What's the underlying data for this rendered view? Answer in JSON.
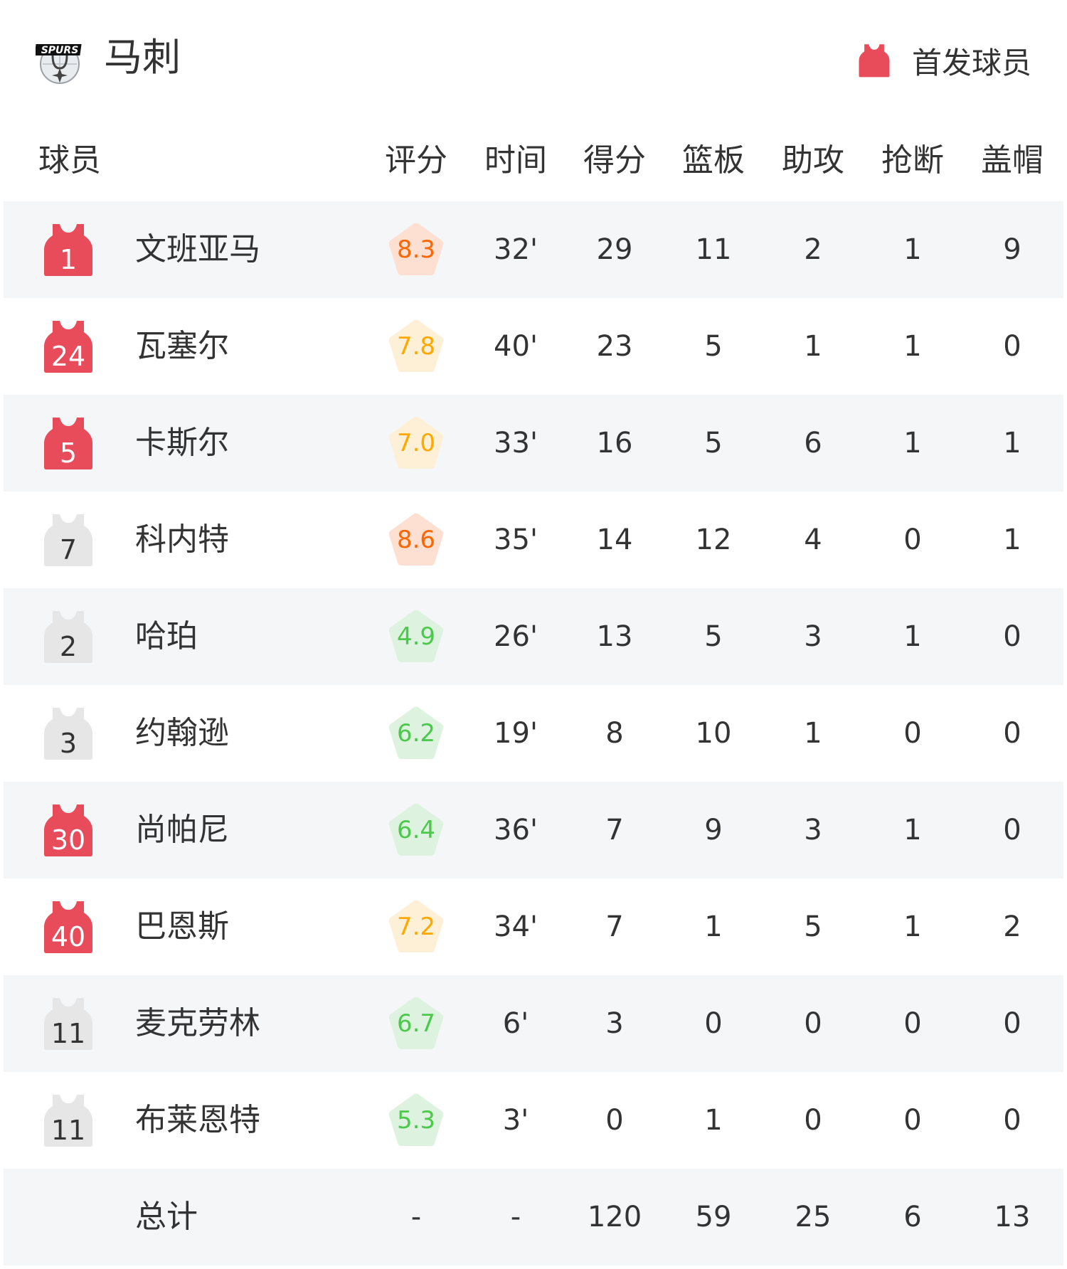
{
  "team": {
    "name": "马刺",
    "logo_text": "SPURS",
    "legend_label": "首发球员",
    "starter_color": "#e84c5a",
    "bench_color": "#e6e6e6"
  },
  "columns": {
    "player": "球员",
    "rating": "评分",
    "time": "时间",
    "points": "得分",
    "rebounds": "篮板",
    "assists": "助攻",
    "steals": "抢断",
    "blocks": "盖帽"
  },
  "rating_colors": {
    "high": {
      "text": "#ff6600",
      "bg": "#fde0d2"
    },
    "mid": {
      "text": "#ffa800",
      "bg": "#fdf0d7"
    },
    "low": {
      "text": "#4cc94c",
      "bg": "#def3df"
    }
  },
  "players": [
    {
      "number": "1",
      "starter": true,
      "name": "文班亚马",
      "rating": "8.3",
      "tier": "high",
      "time": "32'",
      "points": "29",
      "rebounds": "11",
      "assists": "2",
      "steals": "1",
      "blocks": "9"
    },
    {
      "number": "24",
      "starter": true,
      "name": "瓦塞尔",
      "rating": "7.8",
      "tier": "mid",
      "time": "40'",
      "points": "23",
      "rebounds": "5",
      "assists": "1",
      "steals": "1",
      "blocks": "0"
    },
    {
      "number": "5",
      "starter": true,
      "name": "卡斯尔",
      "rating": "7.0",
      "tier": "mid",
      "time": "33'",
      "points": "16",
      "rebounds": "5",
      "assists": "6",
      "steals": "1",
      "blocks": "1"
    },
    {
      "number": "7",
      "starter": false,
      "name": "科内特",
      "rating": "8.6",
      "tier": "high",
      "time": "35'",
      "points": "14",
      "rebounds": "12",
      "assists": "4",
      "steals": "0",
      "blocks": "1"
    },
    {
      "number": "2",
      "starter": false,
      "name": "哈珀",
      "rating": "4.9",
      "tier": "low",
      "time": "26'",
      "points": "13",
      "rebounds": "5",
      "assists": "3",
      "steals": "1",
      "blocks": "0"
    },
    {
      "number": "3",
      "starter": false,
      "name": "约翰逊",
      "rating": "6.2",
      "tier": "low",
      "time": "19'",
      "points": "8",
      "rebounds": "10",
      "assists": "1",
      "steals": "0",
      "blocks": "0"
    },
    {
      "number": "30",
      "starter": true,
      "name": "尚帕尼",
      "rating": "6.4",
      "tier": "low",
      "time": "36'",
      "points": "7",
      "rebounds": "9",
      "assists": "3",
      "steals": "1",
      "blocks": "0"
    },
    {
      "number": "40",
      "starter": true,
      "name": "巴恩斯",
      "rating": "7.2",
      "tier": "mid",
      "time": "34'",
      "points": "7",
      "rebounds": "1",
      "assists": "5",
      "steals": "1",
      "blocks": "2"
    },
    {
      "number": "11",
      "starter": false,
      "name": "麦克劳林",
      "rating": "6.7",
      "tier": "low",
      "time": "6'",
      "points": "3",
      "rebounds": "0",
      "assists": "0",
      "steals": "0",
      "blocks": "0"
    },
    {
      "number": "11",
      "starter": false,
      "name": "布莱恩特",
      "rating": "5.3",
      "tier": "low",
      "time": "3'",
      "points": "0",
      "rebounds": "1",
      "assists": "0",
      "steals": "0",
      "blocks": "0"
    }
  ],
  "totals": {
    "label": "总计",
    "rating": "-",
    "time": "-",
    "points": "120",
    "rebounds": "59",
    "assists": "25",
    "steals": "6",
    "blocks": "13"
  }
}
